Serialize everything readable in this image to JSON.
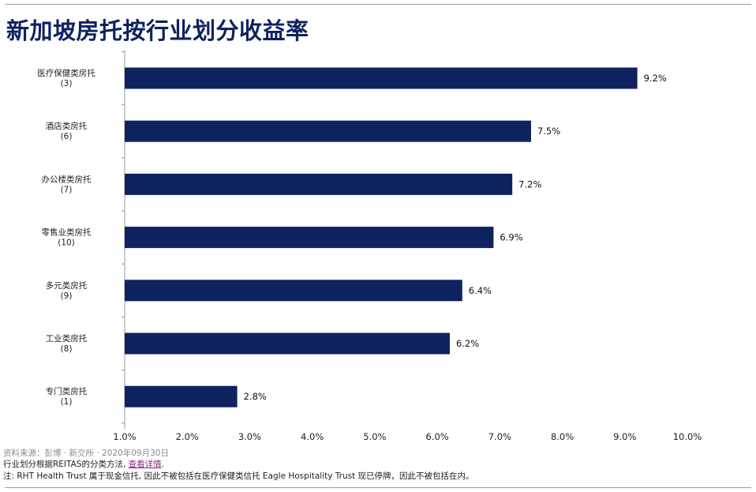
{
  "title": "新加坡房托按行业划分收益率",
  "chart_data": {
    "type": "bar",
    "orientation": "horizontal",
    "categories": [
      {
        "name": "医疗保健类房托",
        "count": "(3)"
      },
      {
        "name": "酒店类房托",
        "count": "(6)"
      },
      {
        "name": "办公楼类房托",
        "count": "(7)"
      },
      {
        "name": "零售业类房托",
        "count": "(10)"
      },
      {
        "name": "多元类房托",
        "count": "(9)"
      },
      {
        "name": "工业类房托",
        "count": "(8)"
      },
      {
        "name": "专门类房托",
        "count": "(1)"
      }
    ],
    "values": [
      9.2,
      7.5,
      7.2,
      6.9,
      6.4,
      6.2,
      2.8
    ],
    "value_labels": [
      "9.2%",
      "7.5%",
      "7.2%",
      "6.9%",
      "6.4%",
      "6.2%",
      "2.8%"
    ],
    "xlim": [
      1.0,
      10.0
    ],
    "xticks": [
      "1.0%",
      "2.0%",
      "3.0%",
      "4.0%",
      "5.0%",
      "6.0%",
      "7.0%",
      "8.0%",
      "9.0%",
      "10.0%"
    ],
    "grid": false,
    "bar_color": "#0f2260"
  },
  "footer": {
    "source": "资料来源：彭博 · 新交所 · 2020年09月30日",
    "method_text": "行业划分根据REITAS的分类方法, ",
    "method_link": "查看详情",
    "method_end": ".",
    "note": "注: RHT Health Trust 属于现金信托, 因此不被包括在医疗保健类信托 Eagle Hospitality Trust 现已停牌，因此不被包括在内。"
  }
}
